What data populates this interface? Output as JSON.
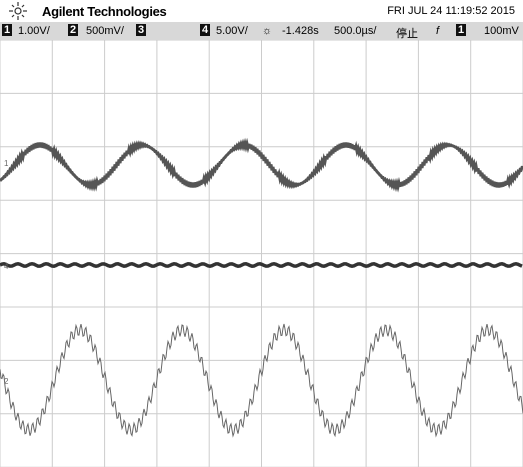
{
  "header": {
    "brand": "Agilent Technologies",
    "datetime": "FRI JUL 24 11:19:52 2015"
  },
  "status_bar": {
    "ch1": "1",
    "ch1_scale": "1.00V/",
    "ch2": "2",
    "ch2_scale": "500mV/",
    "ch3": "3",
    "ch4": "4",
    "ch4_scale": "5.00V/",
    "delay": "-1.428s",
    "timebase": "500.0µs/",
    "run_state": "停止",
    "trigger_slope": "f",
    "trigger_source": "1",
    "trigger_level": "100mV"
  },
  "markers": {
    "ch1": "1",
    "ch4": "4",
    "ch2": "2"
  }
}
